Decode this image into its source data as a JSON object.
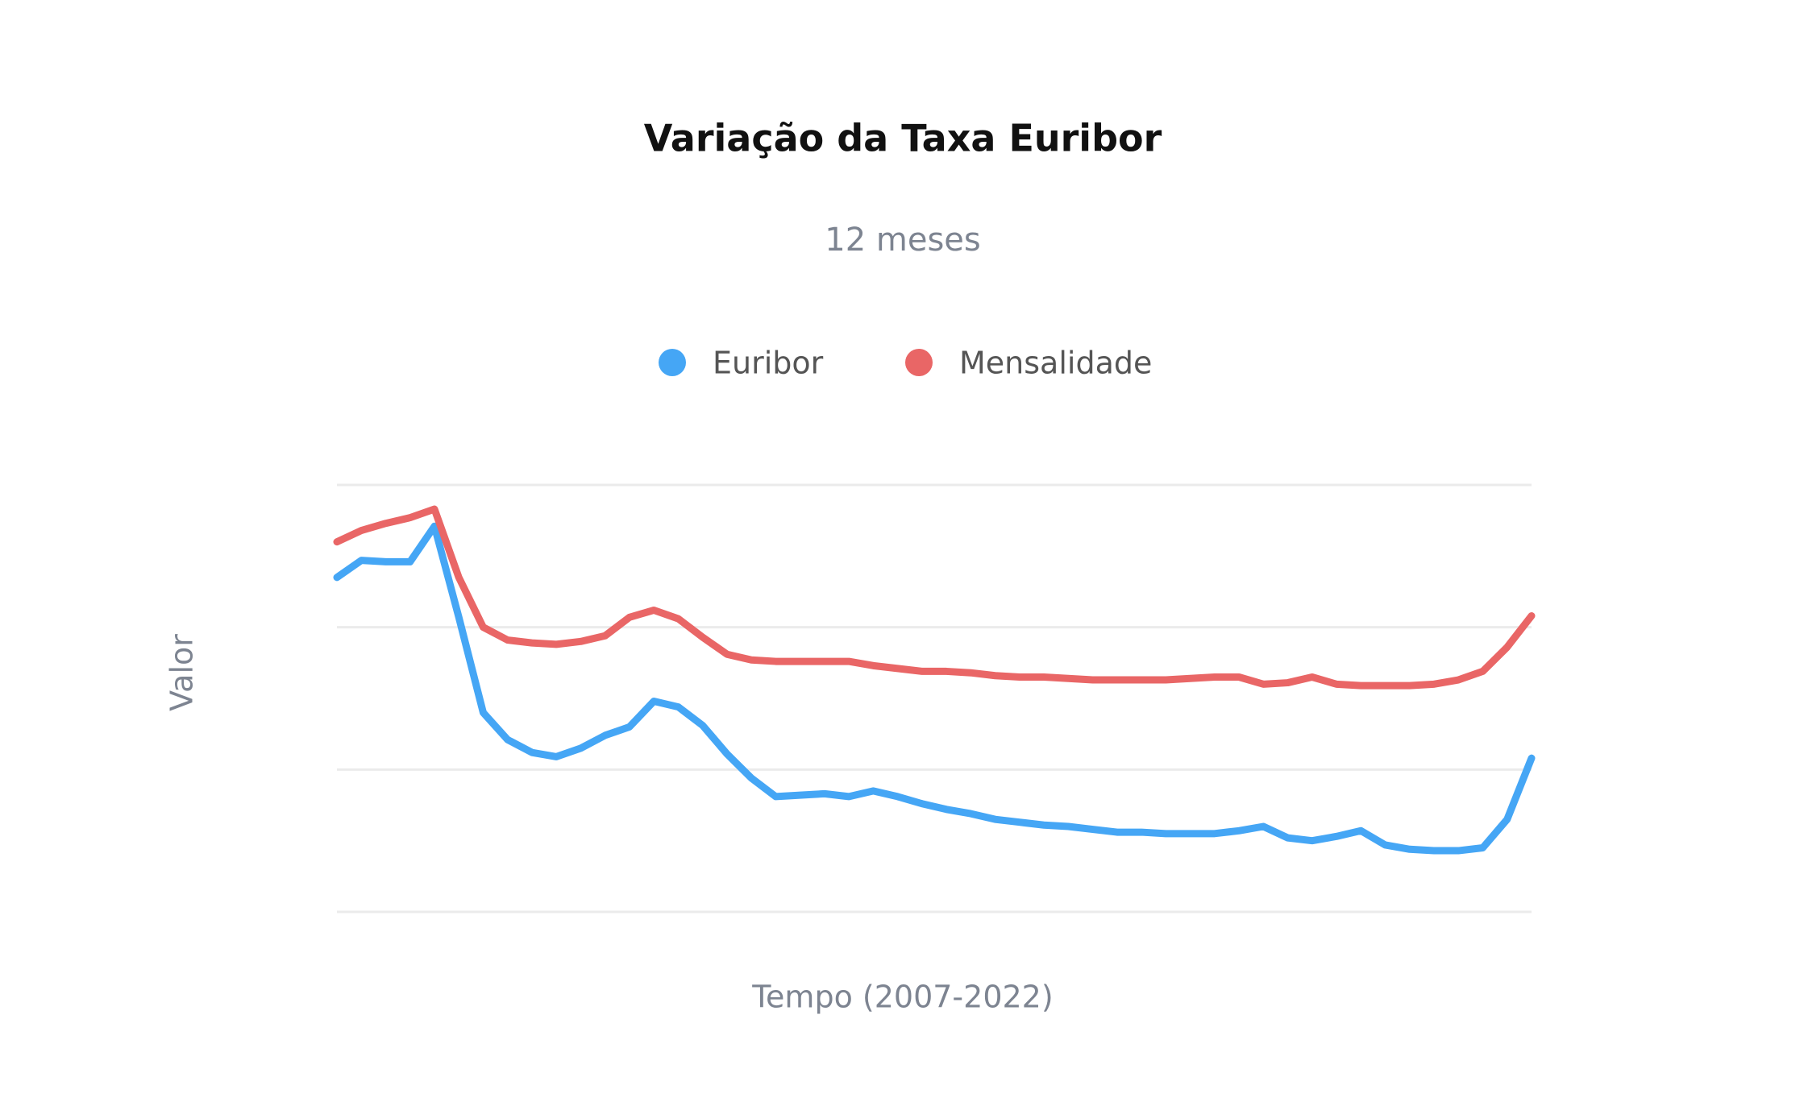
{
  "chart_data": {
    "type": "line",
    "title": "Variação da Taxa Euribor",
    "subtitle": "12 meses",
    "x_label": "Tempo (2007-2022)",
    "y_label": "Valor",
    "categories": [
      null,
      null,
      null,
      null,
      null,
      null,
      null,
      null,
      null,
      null,
      null,
      null,
      null,
      null,
      null,
      null,
      null,
      null,
      null,
      null,
      null,
      null,
      null,
      null,
      null,
      null,
      null,
      null,
      null,
      null,
      null,
      null,
      null,
      null,
      null,
      null,
      null,
      null,
      null,
      null,
      null,
      null,
      null,
      null,
      null,
      null,
      null,
      null,
      null,
      null
    ],
    "series": [
      {
        "name": "Euribor",
        "color": "#45a6f5",
        "values": [
          2.35,
          2.47,
          2.46,
          2.46,
          2.71,
          2.07,
          1.4,
          1.21,
          1.12,
          1.09,
          1.15,
          1.24,
          1.3,
          1.48,
          1.44,
          1.31,
          1.11,
          0.94,
          0.81,
          0.82,
          0.83,
          0.81,
          0.85,
          0.81,
          0.76,
          0.72,
          0.69,
          0.65,
          0.63,
          0.61,
          0.6,
          0.58,
          0.56,
          0.56,
          0.55,
          0.55,
          0.55,
          0.57,
          0.6,
          0.52,
          0.5,
          0.53,
          0.57,
          0.47,
          0.44,
          0.43,
          0.43,
          0.45,
          0.65,
          1.08
        ]
      },
      {
        "name": "Mensalidade",
        "color": "#e96666",
        "values": [
          2.6,
          2.68,
          2.73,
          2.77,
          2.83,
          2.35,
          2.0,
          1.91,
          1.89,
          1.88,
          1.9,
          1.94,
          2.07,
          2.12,
          2.06,
          1.93,
          1.81,
          1.77,
          1.76,
          1.76,
          1.76,
          1.76,
          1.73,
          1.71,
          1.69,
          1.69,
          1.68,
          1.66,
          1.65,
          1.65,
          1.64,
          1.63,
          1.63,
          1.63,
          1.63,
          1.64,
          1.65,
          1.65,
          1.6,
          1.61,
          1.65,
          1.6,
          1.59,
          1.59,
          1.59,
          1.6,
          1.63,
          1.69,
          1.86,
          2.08
        ]
      }
    ],
    "ylim": [
      0,
      3
    ],
    "yticks": [
      0,
      1,
      2,
      3
    ],
    "grid": true,
    "show_tick_labels": false,
    "legend": "top"
  }
}
